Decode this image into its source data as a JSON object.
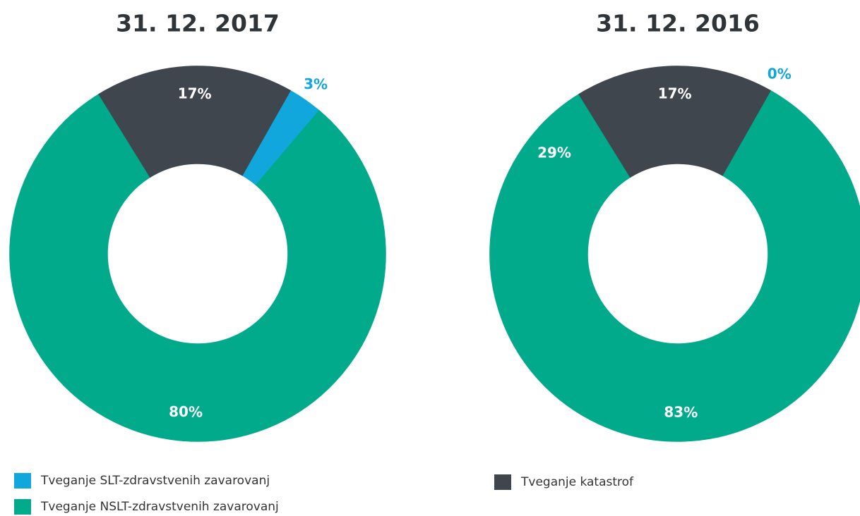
{
  "chart_data": [
    {
      "type": "pie",
      "title": "31. 12. 2017",
      "categories": [
        "Tveganje SLT-zdravstvenih zavarovanj",
        "Tveganje NSLT-zdravstvenih zavarovanj",
        "Tveganje katastrof"
      ],
      "values": [
        3,
        80,
        17
      ],
      "colors": [
        "#11a7dc",
        "#00aa8a",
        "#40464d"
      ],
      "donut": true
    },
    {
      "type": "pie",
      "title": "31. 12. 2016",
      "categories": [
        "Tveganje SLT-zdravstvenih zavarovanj",
        "Tveganje NSLT-zdravstvenih zavarovanj",
        "Tveganje katastrof"
      ],
      "values": [
        0,
        83,
        17
      ],
      "colors": [
        "#11a7dc",
        "#00aa8a",
        "#40464d"
      ],
      "donut": true,
      "annotations": [
        "29%"
      ]
    }
  ]
}
